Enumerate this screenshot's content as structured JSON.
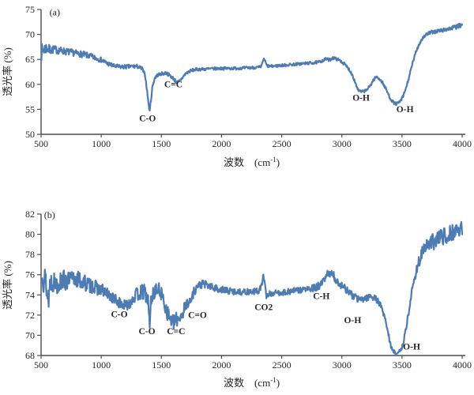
{
  "figure": {
    "background": "#ffffff",
    "series_color": "#4d7cb5",
    "axis_color": "#4d4d4d",
    "text_color": "#262626"
  },
  "chart_data": [
    {
      "type": "line",
      "panel_label": {
        "text": "(a)",
        "x": 570,
        "y": 73.8
      },
      "title": "",
      "xlabel": {
        "main": "波数",
        "unit_open": "(cm",
        "unit_sup": "-1",
        "unit_close": ")"
      },
      "ylabel": "透光率 (%)",
      "xlim": [
        500,
        4000
      ],
      "ylim": [
        50,
        75
      ],
      "x_ticks": [
        500,
        1000,
        1500,
        2000,
        2500,
        3000,
        3500,
        4000
      ],
      "y_ticks": [
        75,
        70,
        65,
        60,
        55,
        50
      ],
      "grid": false,
      "legend": "none",
      "series": [
        {
          "name": "transmittance",
          "color": "#4d7cb5",
          "anchors": [
            [
              500,
              66.3
            ],
            [
              520,
              67.0
            ],
            [
              545,
              67.3
            ],
            [
              570,
              66.9
            ],
            [
              600,
              67.0
            ],
            [
              650,
              66.8
            ],
            [
              700,
              66.6
            ],
            [
              750,
              66.4
            ],
            [
              800,
              66.2
            ],
            [
              850,
              66.0
            ],
            [
              900,
              65.7
            ],
            [
              950,
              65.3
            ],
            [
              1000,
              64.9
            ],
            [
              1050,
              64.2
            ],
            [
              1100,
              63.7
            ],
            [
              1150,
              63.5
            ],
            [
              1200,
              63.5
            ],
            [
              1250,
              63.6
            ],
            [
              1300,
              63.6
            ],
            [
              1340,
              63.1
            ],
            [
              1365,
              61.8
            ],
            [
              1385,
              58.0
            ],
            [
              1400,
              54.6
            ],
            [
              1412,
              56.5
            ],
            [
              1425,
              59.5
            ],
            [
              1445,
              61.3
            ],
            [
              1470,
              61.9
            ],
            [
              1500,
              62.1
            ],
            [
              1540,
              62.3
            ],
            [
              1570,
              61.8
            ],
            [
              1600,
              61.2
            ],
            [
              1625,
              60.4
            ],
            [
              1645,
              60.5
            ],
            [
              1670,
              61.2
            ],
            [
              1700,
              62.1
            ],
            [
              1730,
              62.6
            ],
            [
              1770,
              62.9
            ],
            [
              1800,
              63.0
            ],
            [
              1900,
              63.1
            ],
            [
              2000,
              63.2
            ],
            [
              2100,
              63.2
            ],
            [
              2200,
              63.3
            ],
            [
              2300,
              63.4
            ],
            [
              2330,
              63.5
            ],
            [
              2345,
              64.9
            ],
            [
              2358,
              64.9
            ],
            [
              2375,
              63.8
            ],
            [
              2400,
              63.6
            ],
            [
              2450,
              63.7
            ],
            [
              2500,
              63.8
            ],
            [
              2600,
              64.0
            ],
            [
              2700,
              64.2
            ],
            [
              2800,
              64.4
            ],
            [
              2845,
              64.8
            ],
            [
              2870,
              65.1
            ],
            [
              2895,
              64.9
            ],
            [
              2925,
              65.3
            ],
            [
              2955,
              65.1
            ],
            [
              2990,
              64.7
            ],
            [
              3020,
              64.1
            ],
            [
              3060,
              63.0
            ],
            [
              3090,
              61.8
            ],
            [
              3120,
              59.8
            ],
            [
              3140,
              58.7
            ],
            [
              3170,
              58.5
            ],
            [
              3200,
              58.8
            ],
            [
              3230,
              59.5
            ],
            [
              3260,
              60.8
            ],
            [
              3285,
              61.5
            ],
            [
              3310,
              61.2
            ],
            [
              3340,
              60.3
            ],
            [
              3370,
              58.9
            ],
            [
              3400,
              57.3
            ],
            [
              3430,
              56.3
            ],
            [
              3455,
              56.1
            ],
            [
              3480,
              56.4
            ],
            [
              3510,
              57.6
            ],
            [
              3540,
              59.8
            ],
            [
              3570,
              62.5
            ],
            [
              3600,
              65.3
            ],
            [
              3630,
              67.4
            ],
            [
              3660,
              68.9
            ],
            [
              3690,
              69.8
            ],
            [
              3720,
              70.2
            ],
            [
              3760,
              70.5
            ],
            [
              3800,
              70.7
            ],
            [
              3850,
              70.9
            ],
            [
              3900,
              71.2
            ],
            [
              3950,
              71.5
            ],
            [
              4000,
              71.9
            ]
          ],
          "noise_envelope": [
            [
              500,
              1.7
            ],
            [
              540,
              1.2
            ],
            [
              600,
              0.8
            ],
            [
              700,
              0.7
            ],
            [
              800,
              0.65
            ],
            [
              900,
              0.6
            ],
            [
              1000,
              0.5
            ],
            [
              1100,
              0.45
            ],
            [
              1300,
              0.4
            ],
            [
              1400,
              0.35
            ],
            [
              1600,
              0.35
            ],
            [
              1800,
              0.3
            ],
            [
              2200,
              0.28
            ],
            [
              2600,
              0.28
            ],
            [
              2900,
              0.3
            ],
            [
              3100,
              0.3
            ],
            [
              3400,
              0.3
            ],
            [
              3600,
              0.35
            ],
            [
              3800,
              0.4
            ],
            [
              4000,
              0.45
            ]
          ]
        }
      ],
      "annotations": [
        {
          "text": "C-O",
          "x": 1385,
          "y": 52.6
        },
        {
          "text": "C=C",
          "x": 1600,
          "y": 59.4
        },
        {
          "text": "O-H",
          "x": 3160,
          "y": 56.7
        },
        {
          "text": "O-H",
          "x": 3525,
          "y": 54.4
        }
      ]
    },
    {
      "type": "line",
      "panel_label": {
        "text": "(b)",
        "x": 525,
        "y": 81.6
      },
      "title": "",
      "xlabel": {
        "main": "波数",
        "unit_open": "(cm",
        "unit_sup": "-1",
        "unit_close": ")"
      },
      "ylabel": "透光率 (%)",
      "xlim": [
        500,
        4000
      ],
      "ylim": [
        68,
        82
      ],
      "x_ticks": [
        500,
        1000,
        1500,
        2000,
        2500,
        3000,
        3500,
        4000
      ],
      "y_ticks": [
        82,
        80,
        78,
        76,
        74,
        72,
        70,
        68
      ],
      "grid": false,
      "legend": "none",
      "series": [
        {
          "name": "transmittance",
          "color": "#4d7cb5",
          "anchors": [
            [
              500,
              75.0
            ],
            [
              510,
              76.8
            ],
            [
              520,
              75.2
            ],
            [
              535,
              75.8
            ],
            [
              550,
              74.2
            ],
            [
              560,
              73.2
            ],
            [
              575,
              75.4
            ],
            [
              600,
              75.3
            ],
            [
              640,
              75.1
            ],
            [
              680,
              75.5
            ],
            [
              720,
              75.3
            ],
            [
              760,
              75.5
            ],
            [
              800,
              75.6
            ],
            [
              840,
              75.3
            ],
            [
              880,
              75.1
            ],
            [
              920,
              74.9
            ],
            [
              960,
              74.7
            ],
            [
              1000,
              74.5
            ],
            [
              1050,
              74.1
            ],
            [
              1100,
              73.7
            ],
            [
              1150,
              73.2
            ],
            [
              1200,
              72.9
            ],
            [
              1240,
              73.3
            ],
            [
              1280,
              73.9
            ],
            [
              1320,
              74.2
            ],
            [
              1360,
              74.3
            ],
            [
              1390,
              73.4
            ],
            [
              1402,
              70.9
            ],
            [
              1415,
              73.6
            ],
            [
              1440,
              74.3
            ],
            [
              1465,
              74.5
            ],
            [
              1490,
              74.4
            ],
            [
              1515,
              73.6
            ],
            [
              1545,
              72.4
            ],
            [
              1575,
              71.6
            ],
            [
              1605,
              71.2
            ],
            [
              1635,
              71.7
            ],
            [
              1665,
              72.0
            ],
            [
              1695,
              72.7
            ],
            [
              1720,
              73.4
            ],
            [
              1740,
              73.2
            ],
            [
              1765,
              74.2
            ],
            [
              1790,
              74.7
            ],
            [
              1820,
              75.0
            ],
            [
              1850,
              75.1
            ],
            [
              1890,
              74.9
            ],
            [
              1930,
              74.7
            ],
            [
              1970,
              74.6
            ],
            [
              2050,
              74.4
            ],
            [
              2150,
              74.3
            ],
            [
              2250,
              74.3
            ],
            [
              2310,
              74.4
            ],
            [
              2335,
              75.0
            ],
            [
              2348,
              76.0
            ],
            [
              2360,
              74.9
            ],
            [
              2372,
              73.9
            ],
            [
              2395,
              74.1
            ],
            [
              2450,
              74.2
            ],
            [
              2550,
              74.3
            ],
            [
              2650,
              74.5
            ],
            [
              2750,
              74.6
            ],
            [
              2820,
              74.9
            ],
            [
              2860,
              75.5
            ],
            [
              2890,
              76.3
            ],
            [
              2910,
              76.0
            ],
            [
              2935,
              75.8
            ],
            [
              2960,
              75.3
            ],
            [
              3000,
              75.0
            ],
            [
              3040,
              74.5
            ],
            [
              3080,
              74.0
            ],
            [
              3120,
              73.7
            ],
            [
              3160,
              73.5
            ],
            [
              3200,
              73.7
            ],
            [
              3240,
              73.9
            ],
            [
              3270,
              73.7
            ],
            [
              3300,
              73.4
            ],
            [
              3330,
              72.8
            ],
            [
              3360,
              71.6
            ],
            [
              3385,
              70.3
            ],
            [
              3405,
              69.0
            ],
            [
              3425,
              68.4
            ],
            [
              3450,
              68.25
            ],
            [
              3475,
              68.3
            ],
            [
              3495,
              68.6
            ],
            [
              3515,
              69.5
            ],
            [
              3535,
              70.8
            ],
            [
              3560,
              72.6
            ],
            [
              3585,
              74.5
            ],
            [
              3610,
              76.0
            ],
            [
              3640,
              77.3
            ],
            [
              3670,
              78.2
            ],
            [
              3700,
              78.8
            ],
            [
              3740,
              79.1
            ],
            [
              3780,
              79.4
            ],
            [
              3820,
              79.7
            ],
            [
              3860,
              79.9
            ],
            [
              3900,
              80.1
            ],
            [
              3950,
              80.4
            ],
            [
              4000,
              80.7
            ]
          ],
          "noise_envelope": [
            [
              500,
              1.2
            ],
            [
              560,
              1.1
            ],
            [
              650,
              1.0
            ],
            [
              750,
              0.95
            ],
            [
              850,
              0.85
            ],
            [
              950,
              0.7
            ],
            [
              1050,
              0.6
            ],
            [
              1150,
              0.55
            ],
            [
              1250,
              0.6
            ],
            [
              1330,
              0.8
            ],
            [
              1420,
              0.7
            ],
            [
              1500,
              0.75
            ],
            [
              1600,
              0.8
            ],
            [
              1680,
              0.7
            ],
            [
              1760,
              0.5
            ],
            [
              1850,
              0.4
            ],
            [
              2000,
              0.35
            ],
            [
              2200,
              0.3
            ],
            [
              2400,
              0.3
            ],
            [
              2600,
              0.3
            ],
            [
              2800,
              0.4
            ],
            [
              2900,
              0.5
            ],
            [
              3000,
              0.4
            ],
            [
              3150,
              0.35
            ],
            [
              3300,
              0.3
            ],
            [
              3450,
              0.18
            ],
            [
              3550,
              0.3
            ],
            [
              3650,
              0.6
            ],
            [
              3720,
              0.8
            ],
            [
              3850,
              0.85
            ],
            [
              4000,
              0.8
            ]
          ]
        }
      ],
      "annotations": [
        {
          "text": "C-O",
          "x": 1150,
          "y": 71.8
        },
        {
          "text": "C-O",
          "x": 1380,
          "y": 70.1
        },
        {
          "text": "C=C",
          "x": 1622,
          "y": 70.1
        },
        {
          "text": "C=O",
          "x": 1800,
          "y": 71.7
        },
        {
          "text": "CO2",
          "x": 2350,
          "y": 72.5
        },
        {
          "text": "C-H",
          "x": 2830,
          "y": 73.6
        },
        {
          "text": "O-H",
          "x": 3090,
          "y": 71.2
        },
        {
          "text": "O-H",
          "x": 3580,
          "y": 68.6
        }
      ]
    }
  ]
}
